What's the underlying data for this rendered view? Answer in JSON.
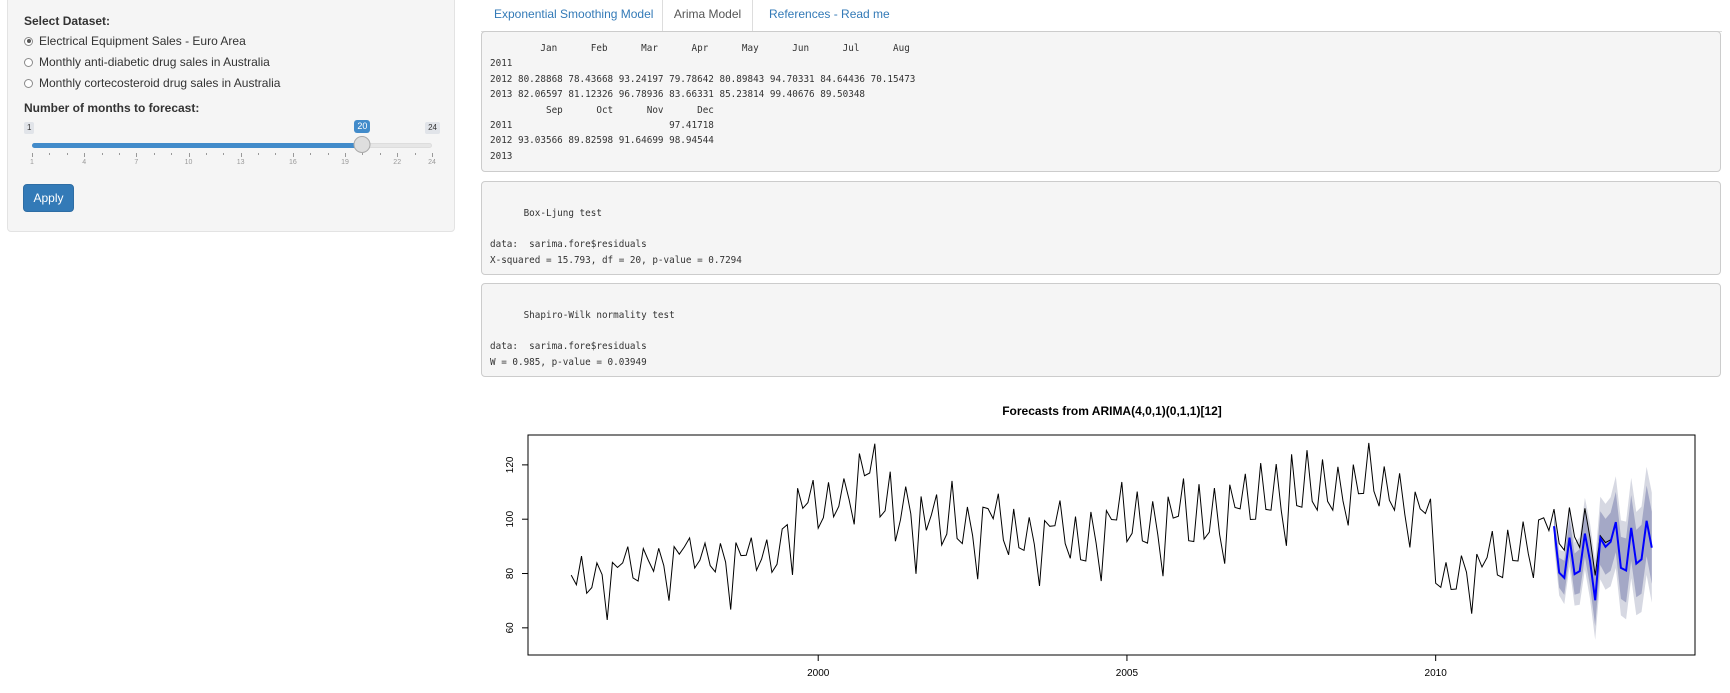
{
  "sidebar": {
    "dataset_label": "Select Dataset:",
    "datasets": [
      {
        "label": "Electrical Equipment Sales - Euro Area",
        "selected": true
      },
      {
        "label": "Monthly anti-diabetic drug sales in Australia",
        "selected": false
      },
      {
        "label": "Monthly cortecosteroid drug sales in Australia",
        "selected": false
      }
    ],
    "slider": {
      "label": "Number of months to forecast:",
      "min": 1,
      "max": 24,
      "value": 20,
      "min_text": "1",
      "max_text": "24",
      "value_text": "20",
      "tick_labels": [
        "1",
        "4",
        "7",
        "10",
        "13",
        "16",
        "19",
        "22",
        "24"
      ]
    },
    "apply_label": "Apply"
  },
  "tabs": [
    {
      "label": "Exponential Smoothing Model",
      "active": false
    },
    {
      "label": "Arima Model",
      "active": true
    },
    {
      "label": "References - Read me",
      "active": false
    }
  ],
  "outputs": {
    "forecast_table": "         Jan      Feb      Mar      Apr      May      Jun      Jul      Aug\n2011\n2012 80.28868 78.43668 93.24197 79.78642 80.89843 94.70331 84.64436 70.15473\n2013 82.06597 81.12326 96.78936 83.66331 85.23814 99.40676 89.50348\n          Sep      Oct      Nov      Dec\n2011                            97.41718\n2012 93.03566 89.82598 91.64699 98.94544\n2013",
    "box_ljung": "\n      Box-Ljung test\n\ndata:  sarima.fore$residuals\nX-squared = 15.793, df = 20, p-value = 0.7294",
    "shapiro": "\n      Shapiro-Wilk normality test\n\ndata:  sarima.fore$residuals\nW = 0.985, p-value = 0.03949"
  },
  "chart_data": {
    "type": "line",
    "title": "Forecasts from ARIMA(4,0,1)(0,1,1)[12]",
    "xlabel": "",
    "ylabel": "",
    "xlim": [
      1995.3,
      2014.2
    ],
    "ylim": [
      50,
      131
    ],
    "x_ticks": [
      2000,
      2005,
      2010
    ],
    "y_ticks": [
      60,
      80,
      100,
      120
    ],
    "x_tick_labels": [
      "2000",
      "2005",
      "2010"
    ],
    "y_tick_labels": [
      "60",
      "80",
      "100",
      "120"
    ],
    "history": {
      "start": 1996.0,
      "frequency": 12,
      "values": [
        79.4,
        75.9,
        86.4,
        72.7,
        74.8,
        83.9,
        79.6,
        62.9,
        84.1,
        82.2,
        83.9,
        89.9,
        78.4,
        77.2,
        89.2,
        84.8,
        80.8,
        89.3,
        82.9,
        70.0,
        89.9,
        87.1,
        89.8,
        93.1,
        82.0,
        84.9,
        91.2,
        82.9,
        80.6,
        91.1,
        84.2,
        66.7,
        91.4,
        86.6,
        86.7,
        93.2,
        81.2,
        85.3,
        92.5,
        80.4,
        83.4,
        96.4,
        98.0,
        79.5,
        111.4,
        104.0,
        106.1,
        114.4,
        96.7,
        100.6,
        113.6,
        100.9,
        104.7,
        115.0,
        107.2,
        98.1,
        124.2,
        116.0,
        117.0,
        127.8,
        100.8,
        103.1,
        117.5,
        91.9,
        99.8,
        112.0,
        102.0,
        79.9,
        108.4,
        95.9,
        101.6,
        109.1,
        90.5,
        94.5,
        114.1,
        92.9,
        91.0,
        104.5,
        94.0,
        77.9,
        104.4,
        103.9,
        100.2,
        109.4,
        92.3,
        86.9,
        103.8,
        89.5,
        88.5,
        100.7,
        90.8,
        75.4,
        99.5,
        97.4,
        97.6,
        106.9,
        91.0,
        85.6,
        101.0,
        85.1,
        84.6,
        102.7,
        91.2,
        77.2,
        103.2,
        99.9,
        99.7,
        113.7,
        91.7,
        94.8,
        110.2,
        92.0,
        91.2,
        106.6,
        94.3,
        79.0,
        108.3,
        100.4,
        101.1,
        115.0,
        92.1,
        91.8,
        112.9,
        92.7,
        95.2,
        111.5,
        94.4,
        83.6,
        112.7,
        104.3,
        103.8,
        116.7,
        99.9,
        100.0,
        120.7,
        103.6,
        103.3,
        120.3,
        103.0,
        90.2,
        123.9,
        105.0,
        104.4,
        125.4,
        106.6,
        103.3,
        122.0,
        106.6,
        103.3,
        119.3,
        106.7,
        97.7,
        120.1,
        109.4,
        109.5,
        128.1,
        110.3,
        104.8,
        119.4,
        107.0,
        103.3,
        116.9,
        101.8,
        89.6,
        110.1,
        103.8,
        102.1,
        107.5,
        76.4,
        74.9,
        84.1,
        74.1,
        74.3,
        86.6,
        80.5,
        65.2,
        87.2,
        82.4,
        85.9,
        95.6,
        79.5,
        78.5,
        96.1,
        84.8,
        84.6,
        99.1,
        87.3,
        78.4,
        99.7,
        100.5,
        95.8,
        103.7,
        91.0,
        88.6,
        104.3,
        93.5,
        89.6,
        104.0,
        93.2,
        79.3,
        93.9,
        91.4,
        92.4
      ]
    },
    "forecast": {
      "start": 2011.9167,
      "frequency": 12,
      "values": [
        97.41718,
        80.28868,
        78.43668,
        93.24197,
        79.78642,
        80.89843,
        94.70331,
        84.64436,
        70.15473,
        93.03566,
        89.82598,
        91.64699,
        98.94544,
        82.06597,
        81.12326,
        96.78936,
        83.66331,
        85.23814,
        99.40676,
        89.50348
      ],
      "band80_halfwidth": [
        4.5,
        5.5,
        6.3,
        7.0,
        7.6,
        8.1,
        8.6,
        9.1,
        9.5,
        9.9,
        10.3,
        10.7,
        11.1,
        11.4,
        11.8,
        12.1,
        12.4,
        12.7,
        13.0,
        13.3
      ],
      "band95_halfwidth": [
        6.9,
        8.4,
        9.7,
        10.7,
        11.6,
        12.4,
        13.2,
        13.9,
        14.6,
        15.2,
        15.8,
        16.4,
        16.9,
        17.5,
        18.0,
        18.5,
        19.0,
        19.4,
        19.9,
        20.3
      ]
    },
    "colors": {
      "history": "#000000",
      "forecast": "#0000ff",
      "band80": "#a4a8c6",
      "band95": "#d6d8e2"
    }
  }
}
